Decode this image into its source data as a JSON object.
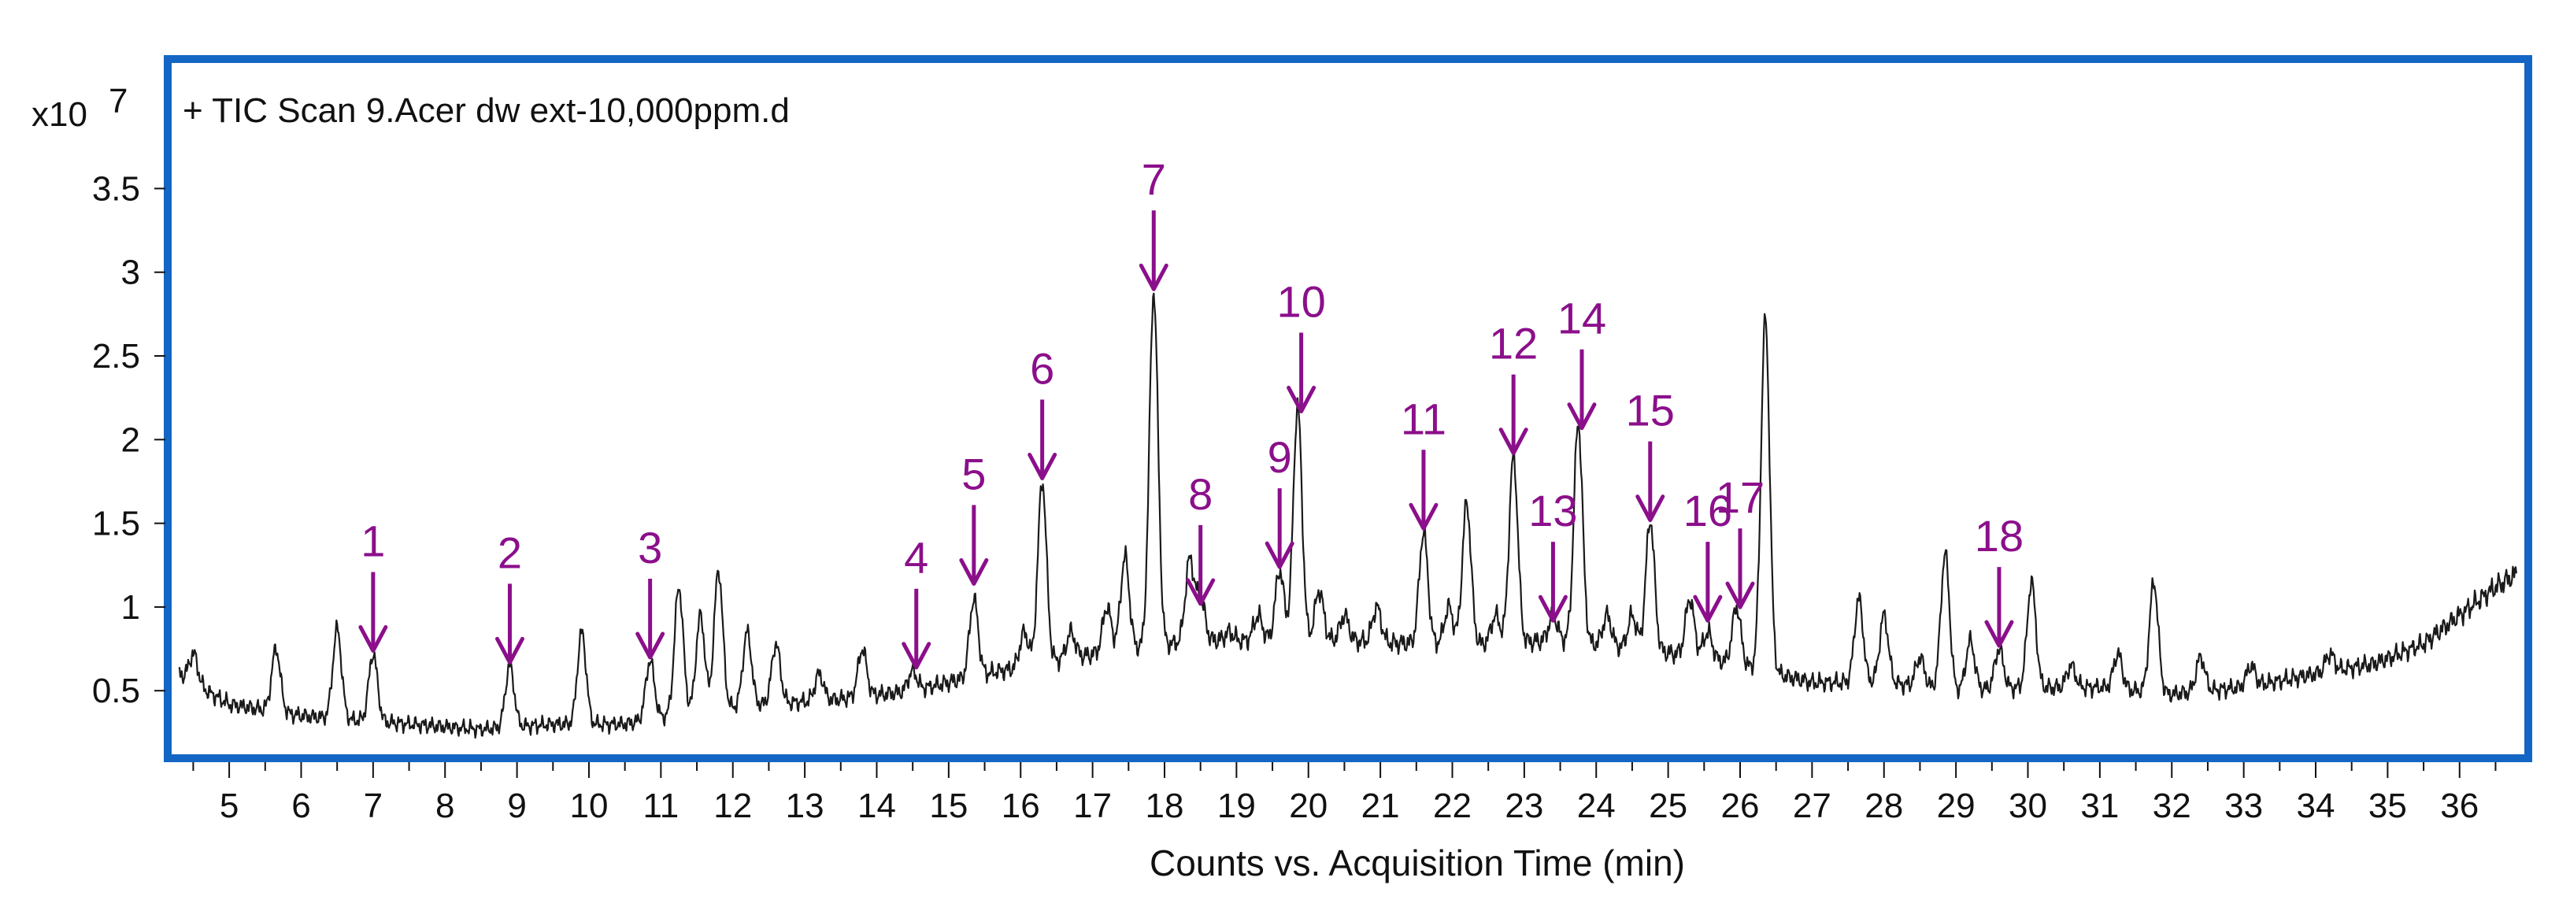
{
  "chart_data": {
    "type": "line",
    "title": "+ TIC Scan 9.Acer  dw ext-10,000ppm.d",
    "y_multiplier": "x10",
    "y_exponent": "7",
    "xlabel": "Counts vs. Acquisition Time (min)",
    "ylabel": "",
    "xlim": [
      4.2,
      36.9
    ],
    "ylim": [
      0.12,
      4.25
    ],
    "x_ticks": [
      5,
      6,
      7,
      8,
      9,
      10,
      11,
      12,
      13,
      14,
      15,
      16,
      17,
      18,
      19,
      20,
      21,
      22,
      23,
      24,
      25,
      26,
      27,
      28,
      29,
      30,
      31,
      32,
      33,
      34,
      35,
      36
    ],
    "x_tick_labels": [
      "5",
      "6",
      "7",
      "8",
      "9",
      "10",
      "11",
      "12",
      "13",
      "14",
      "15",
      "16",
      "17",
      "18",
      "19",
      "20",
      "21",
      "22",
      "23",
      "24",
      "25",
      "26",
      "27",
      "28",
      "29",
      "30",
      "31",
      "32",
      "33",
      "34",
      "35",
      "36"
    ],
    "y_ticks": [
      0.5,
      1,
      1.5,
      2,
      2.5,
      3,
      3.5
    ],
    "y_tick_labels": [
      "0.5",
      "1",
      "1.5",
      "2",
      "2.5",
      "3",
      "3.5"
    ],
    "series": [
      {
        "name": "TIC",
        "baseline": [
          [
            4.3,
            0.6
          ],
          [
            4.6,
            0.52
          ],
          [
            5.0,
            0.42
          ],
          [
            6.0,
            0.35
          ],
          [
            7.5,
            0.3
          ],
          [
            8.5,
            0.27
          ],
          [
            9.5,
            0.3
          ],
          [
            10.5,
            0.3
          ],
          [
            11.5,
            0.38
          ],
          [
            12.5,
            0.42
          ],
          [
            13.5,
            0.45
          ],
          [
            14.5,
            0.5
          ],
          [
            15.5,
            0.6
          ],
          [
            16.5,
            0.68
          ],
          [
            17.5,
            0.75
          ],
          [
            18.5,
            0.8
          ],
          [
            19.5,
            0.8
          ],
          [
            20.5,
            0.8
          ],
          [
            21.5,
            0.78
          ],
          [
            22.5,
            0.78
          ],
          [
            23.5,
            0.8
          ],
          [
            24.5,
            0.75
          ],
          [
            25.5,
            0.7
          ],
          [
            26.5,
            0.6
          ],
          [
            27.0,
            0.55
          ],
          [
            28.0,
            0.55
          ],
          [
            29.0,
            0.5
          ],
          [
            30.0,
            0.52
          ],
          [
            31.0,
            0.52
          ],
          [
            32.0,
            0.48
          ],
          [
            33.0,
            0.52
          ],
          [
            34.0,
            0.6
          ],
          [
            34.8,
            0.66
          ],
          [
            35.5,
            0.78
          ],
          [
            36.0,
            0.95
          ],
          [
            36.5,
            1.12
          ],
          [
            36.8,
            1.2
          ]
        ],
        "peaks": [
          [
            4.5,
            0.72
          ],
          [
            5.65,
            0.75
          ],
          [
            6.5,
            0.87
          ],
          [
            7.0,
            0.72
          ],
          [
            8.9,
            0.65
          ],
          [
            9.9,
            0.85
          ],
          [
            10.85,
            0.68
          ],
          [
            11.25,
            1.12
          ],
          [
            11.55,
            0.95
          ],
          [
            11.8,
            1.22
          ],
          [
            12.2,
            0.85
          ],
          [
            12.6,
            0.78
          ],
          [
            13.2,
            0.6
          ],
          [
            13.8,
            0.75
          ],
          [
            14.5,
            0.62
          ],
          [
            15.35,
            1.05
          ],
          [
            16.05,
            0.85
          ],
          [
            16.3,
            1.75
          ],
          [
            16.7,
            0.85
          ],
          [
            17.2,
            1.0
          ],
          [
            17.45,
            1.3
          ],
          [
            17.85,
            2.88
          ],
          [
            18.35,
            1.28
          ],
          [
            18.5,
            1.05
          ],
          [
            18.9,
            0.85
          ],
          [
            19.3,
            0.95
          ],
          [
            19.6,
            1.22
          ],
          [
            19.85,
            2.2
          ],
          [
            20.15,
            1.1
          ],
          [
            20.5,
            0.95
          ],
          [
            20.95,
            1.0
          ],
          [
            21.6,
            1.45
          ],
          [
            21.95,
            1.0
          ],
          [
            22.2,
            1.62
          ],
          [
            22.6,
            0.95
          ],
          [
            22.85,
            1.9
          ],
          [
            23.4,
            0.95
          ],
          [
            23.75,
            2.1
          ],
          [
            24.15,
            0.95
          ],
          [
            24.5,
            0.95
          ],
          [
            24.75,
            1.52
          ],
          [
            25.3,
            1.05
          ],
          [
            25.55,
            0.85
          ],
          [
            25.95,
            1.0
          ],
          [
            26.35,
            2.72
          ],
          [
            27.65,
            1.05
          ],
          [
            28.0,
            0.95
          ],
          [
            28.5,
            0.7
          ],
          [
            28.85,
            1.32
          ],
          [
            29.2,
            0.8
          ],
          [
            29.6,
            0.75
          ],
          [
            30.05,
            1.15
          ],
          [
            30.6,
            0.65
          ],
          [
            31.25,
            0.72
          ],
          [
            31.75,
            1.15
          ],
          [
            32.4,
            0.7
          ],
          [
            33.1,
            0.65
          ],
          [
            34.2,
            0.72
          ]
        ]
      }
    ],
    "annotations": [
      {
        "label": "1",
        "x": 7.0,
        "y": 0.72
      },
      {
        "label": "2",
        "x": 8.9,
        "y": 0.65
      },
      {
        "label": "3",
        "x": 10.85,
        "y": 0.68
      },
      {
        "label": "4",
        "x": 14.55,
        "y": 0.62
      },
      {
        "label": "5",
        "x": 15.35,
        "y": 1.12
      },
      {
        "label": "6",
        "x": 16.3,
        "y": 1.75
      },
      {
        "label": "7",
        "x": 17.85,
        "y": 2.88
      },
      {
        "label": "8",
        "x": 18.5,
        "y": 1.0
      },
      {
        "label": "9",
        "x": 19.6,
        "y": 1.22
      },
      {
        "label": "10",
        "x": 19.9,
        "y": 2.15
      },
      {
        "label": "11",
        "x": 21.6,
        "y": 1.45
      },
      {
        "label": "12",
        "x": 22.85,
        "y": 1.9
      },
      {
        "label": "13",
        "x": 23.4,
        "y": 0.9
      },
      {
        "label": "14",
        "x": 23.8,
        "y": 2.05
      },
      {
        "label": "15",
        "x": 24.75,
        "y": 1.5
      },
      {
        "label": "16",
        "x": 25.55,
        "y": 0.9
      },
      {
        "label": "17",
        "x": 26.0,
        "y": 0.98
      },
      {
        "label": "18",
        "x": 29.6,
        "y": 0.75
      }
    ],
    "colors": {
      "frame": "#1466c4",
      "trace": "#1a1a1a",
      "annotation": "#8b0f8b",
      "text": "#111111"
    }
  }
}
